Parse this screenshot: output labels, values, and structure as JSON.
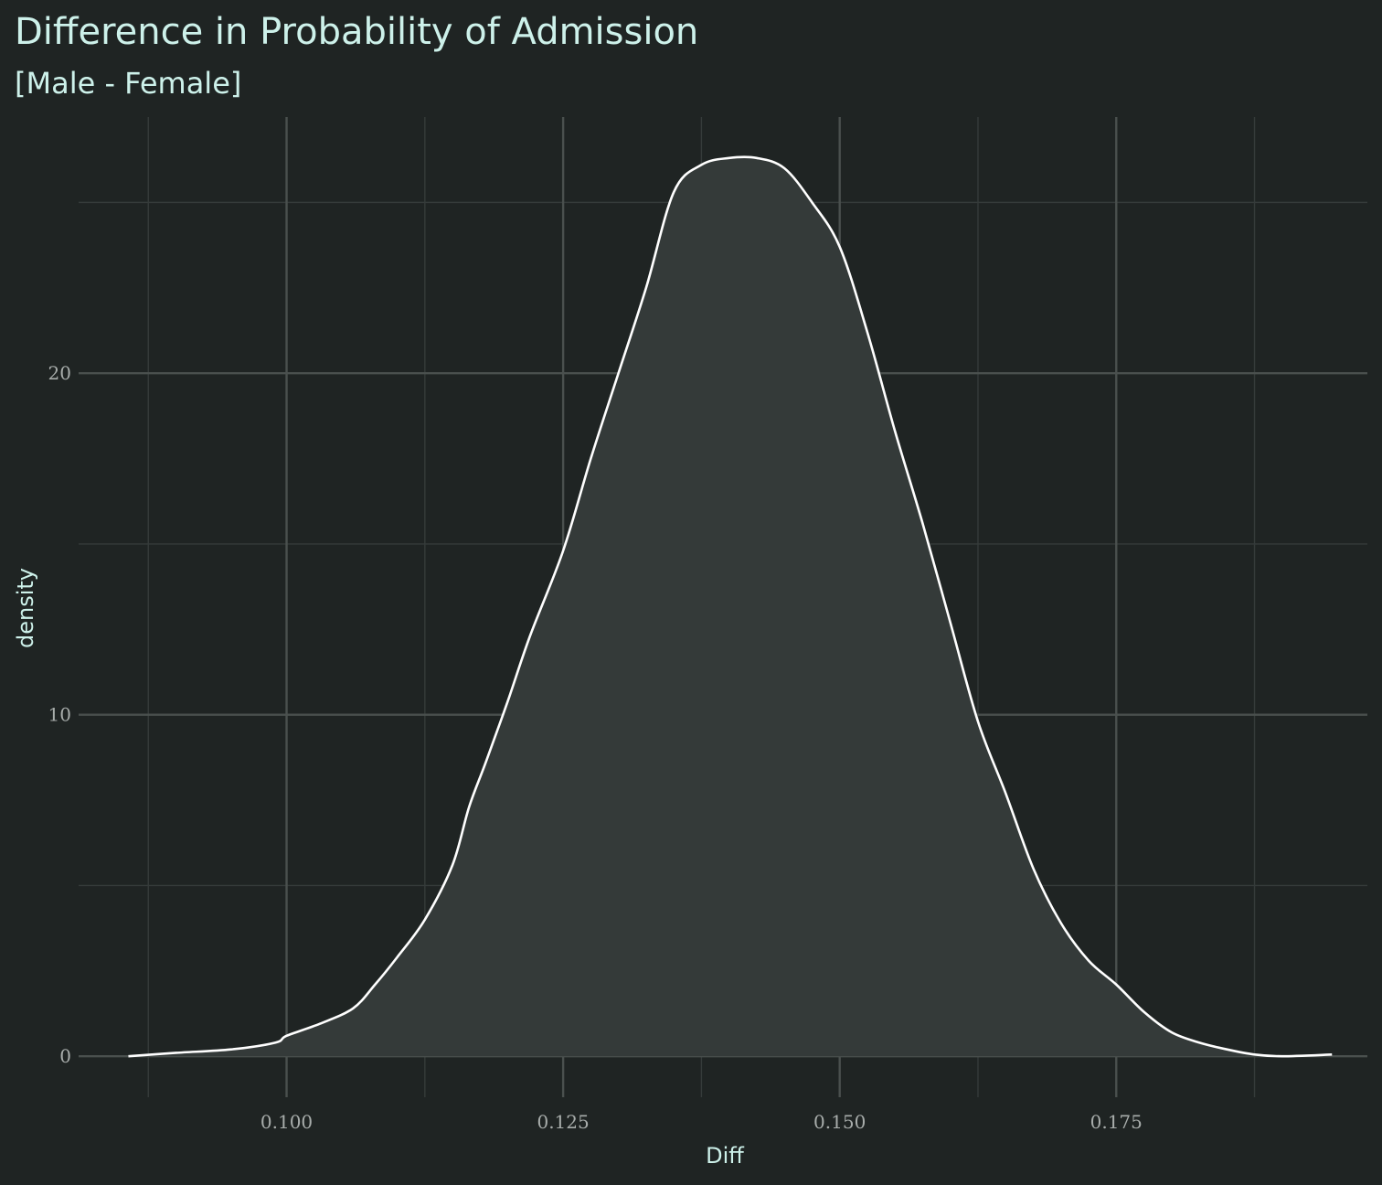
{
  "chart_data": {
    "type": "area",
    "title": "Difference in Probability of Admission",
    "subtitle": "[Male - Female]",
    "xlabel": "Diff",
    "ylabel": "density",
    "xlim": [
      0.0812,
      0.1977
    ],
    "ylim": [
      -1.2,
      27.5
    ],
    "x_ticks": [
      0.1,
      0.125,
      0.15,
      0.175
    ],
    "x_tick_labels": [
      "0.100",
      "0.125",
      "0.150",
      "0.175"
    ],
    "y_ticks": [
      0,
      10,
      20
    ],
    "y_tick_labels": [
      "0",
      "10",
      "20"
    ],
    "x_minor_ticks": [
      0.0875,
      0.1125,
      0.1375,
      0.1625,
      0.1875
    ],
    "y_minor_ticks": [
      5,
      15,
      25
    ],
    "grid": true,
    "series": [
      {
        "x": [
          0.0857,
          0.09,
          0.095,
          0.099,
          0.1,
          0.103,
          0.106,
          0.108,
          0.11,
          0.1125,
          0.115,
          0.1165,
          0.118,
          0.12,
          0.122,
          0.125,
          0.1275,
          0.13,
          0.1325,
          0.135,
          0.1375,
          0.14,
          0.1425,
          0.145,
          0.1475,
          0.15,
          0.1525,
          0.155,
          0.1575,
          0.16,
          0.1625,
          0.165,
          0.1675,
          0.17,
          0.1725,
          0.175,
          0.1775,
          0.18,
          0.1825,
          0.185,
          0.1875,
          0.19,
          0.1945
        ],
        "y": [
          0.0,
          0.1,
          0.2,
          0.4,
          0.6,
          0.95,
          1.4,
          2.1,
          2.9,
          4.0,
          5.6,
          7.3,
          8.6,
          10.4,
          12.3,
          14.8,
          17.5,
          20.0,
          22.5,
          25.3,
          26.1,
          26.3,
          26.3,
          26.0,
          25.0,
          23.7,
          21.2,
          18.3,
          15.6,
          12.7,
          9.8,
          7.7,
          5.5,
          3.9,
          2.8,
          2.1,
          1.3,
          0.7,
          0.4,
          0.2,
          0.05,
          0.0,
          0.05
        ]
      }
    ],
    "colors": {
      "background": "#1f2423",
      "fill": "#343a39",
      "line": "#ffffff",
      "grid_major": "#4a504e",
      "grid_minor": "#353b3a",
      "text": "#cdf1ea",
      "tick_text": "#a8adab"
    }
  }
}
